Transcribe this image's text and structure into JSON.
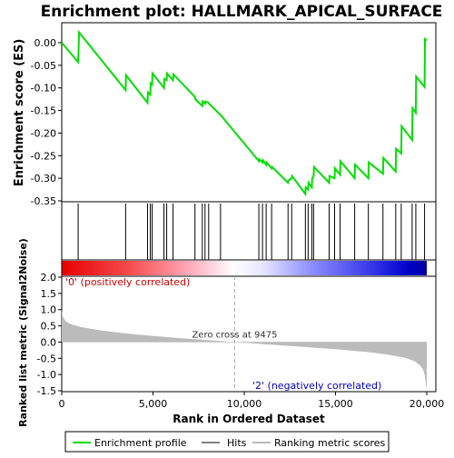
{
  "chart_data": {
    "type": "line",
    "title": "Enrichment plot: HALLMARK_APICAL_SURFACE",
    "top_panel": {
      "ylabel": "Enrichment score (ES)",
      "ylim": [
        -0.35,
        0.05
      ],
      "yticks": [
        "0.00",
        "-0.05",
        "-0.10",
        "-0.15",
        "-0.20",
        "-0.25",
        "-0.30",
        "-0.35"
      ],
      "ytick_values": [
        0.0,
        -0.05,
        -0.1,
        -0.15,
        -0.2,
        -0.25,
        -0.3,
        -0.35
      ],
      "line_color": "#00dd00",
      "series": [
        {
          "name": "Enrichment profile",
          "x": [
            0,
            900,
            950,
            3500,
            3520,
            4700,
            4720,
            4850,
            4870,
            4950,
            4970,
            5600,
            5620,
            5750,
            5770,
            6100,
            6120,
            7300,
            7320,
            7700,
            7720,
            7850,
            7870,
            8050,
            8070,
            8700,
            10800,
            10820,
            11000,
            11020,
            11200,
            11220,
            11500,
            11520,
            12400,
            12420,
            12600,
            12620,
            13350,
            13370,
            13500,
            13520,
            13700,
            13720,
            13800,
            13820,
            14650,
            14670,
            14950,
            14970,
            15250,
            15270,
            16050,
            16070,
            16800,
            16820,
            17600,
            17620,
            18300,
            18320,
            18600,
            18620,
            19200,
            19220,
            19400,
            19420,
            19880,
            19900,
            20000
          ],
          "y": [
            0.0,
            -0.043,
            0.023,
            -0.105,
            -0.072,
            -0.133,
            -0.11,
            -0.115,
            -0.09,
            -0.093,
            -0.068,
            -0.1,
            -0.08,
            -0.083,
            -0.068,
            -0.083,
            -0.07,
            -0.12,
            -0.125,
            -0.14,
            -0.13,
            -0.135,
            -0.13,
            -0.133,
            -0.135,
            -0.16,
            -0.262,
            -0.258,
            -0.265,
            -0.26,
            -0.27,
            -0.265,
            -0.278,
            -0.275,
            -0.31,
            -0.305,
            -0.3,
            -0.295,
            -0.335,
            -0.32,
            -0.325,
            -0.31,
            -0.32,
            -0.3,
            -0.295,
            -0.275,
            -0.31,
            -0.295,
            -0.3,
            -0.278,
            -0.292,
            -0.262,
            -0.3,
            -0.27,
            -0.3,
            -0.265,
            -0.29,
            -0.255,
            -0.285,
            -0.235,
            -0.245,
            -0.185,
            -0.215,
            -0.145,
            -0.155,
            -0.075,
            -0.098,
            0.008,
            0.005
          ]
        }
      ]
    },
    "hits": [
      900,
      3500,
      4700,
      4850,
      4950,
      5600,
      5750,
      6100,
      7300,
      7700,
      7850,
      8050,
      8700,
      10800,
      11000,
      11200,
      11500,
      12400,
      12600,
      13350,
      13500,
      13700,
      13800,
      14650,
      14950,
      15250,
      16050,
      16800,
      17600,
      18300,
      18600,
      19200,
      19400,
      19880
    ],
    "bottom_panel": {
      "ylabel": "Ranked list metric (Signal2Noise)",
      "xlabel": "Rank in Ordered Dataset",
      "ylim": [
        -1.5,
        2.0
      ],
      "yticks": [
        "2.0",
        "1.5",
        "1.0",
        "0.5",
        "0.0",
        "-0.5",
        "-1.0",
        "-1.5"
      ],
      "ytick_values": [
        2.0,
        1.5,
        1.0,
        0.5,
        0.0,
        -0.5,
        -1.0,
        -1.5
      ],
      "metric_curve": {
        "x": [
          0,
          50,
          200,
          500,
          1000,
          2000,
          3000,
          4000,
          5000,
          6000,
          7000,
          8000,
          9000,
          9475,
          10000,
          11000,
          12000,
          13000,
          14000,
          15000,
          16000,
          17000,
          18000,
          18800,
          19300,
          19600,
          19800,
          19900,
          19950,
          20000
        ],
        "y": [
          1.0,
          0.8,
          0.65,
          0.55,
          0.47,
          0.37,
          0.3,
          0.24,
          0.19,
          0.14,
          0.1,
          0.06,
          0.02,
          0.0,
          -0.02,
          -0.06,
          -0.1,
          -0.14,
          -0.18,
          -0.22,
          -0.27,
          -0.32,
          -0.4,
          -0.48,
          -0.58,
          -0.7,
          -0.85,
          -1.05,
          -1.3,
          -1.45
        ]
      },
      "zero_cross_rank": 9475,
      "zero_cross_label": "Zero cross at 9475",
      "pos_label": "'0' (positively correlated)",
      "neg_label": "'2' (negatively correlated)"
    },
    "x_axis": {
      "xlim": [
        0,
        20000
      ],
      "ticks": [
        "0",
        "5,000",
        "10,000",
        "15,000",
        "20,000"
      ],
      "tick_values": [
        0,
        5000,
        10000,
        15000,
        20000
      ]
    },
    "legend": {
      "position": "bottom",
      "items": [
        {
          "label": "Enrichment profile",
          "color": "#00dd00"
        },
        {
          "label": "Hits",
          "color": "#000000"
        },
        {
          "label": "Ranking metric scores",
          "color": "#bbbbbb"
        }
      ]
    },
    "colors": {
      "pos_red": "#ff0000",
      "neg_blue": "#0000ff",
      "mid": "#ffffff",
      "pos_text": "#cc0000",
      "neg_text": "#0000cc",
      "metric_fill": "#bbbbbb"
    }
  }
}
